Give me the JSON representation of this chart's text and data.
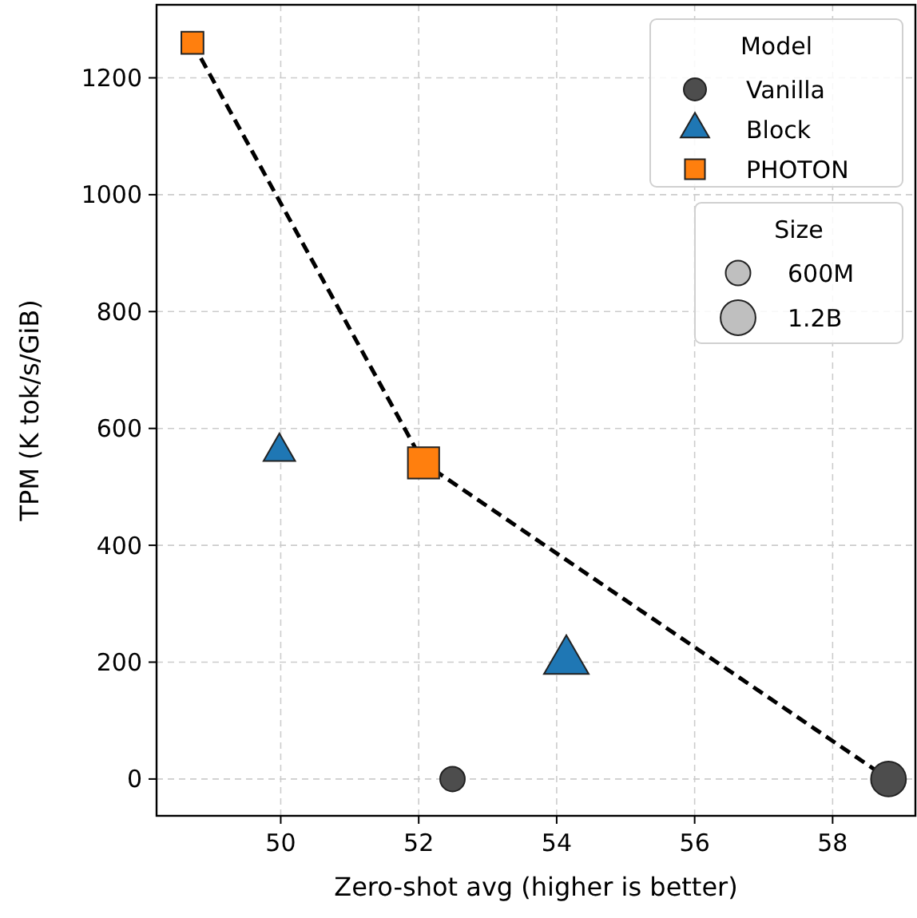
{
  "chart_data": {
    "type": "bubble",
    "xlabel": "Zero-shot avg (higher is better)",
    "ylabel": "TPM (K tok/s/GiB)",
    "xlim": [
      48.2,
      59.2
    ],
    "xticks": [
      50,
      52,
      54,
      56,
      58
    ],
    "ylim": [
      -63,
      1325
    ],
    "yticks": [
      0,
      200,
      400,
      600,
      800,
      1000,
      1200
    ],
    "grid": true,
    "legend": "top right",
    "legend_title": "Model",
    "size_legend": [
      {
        "value": 0.6,
        "label": "600M"
      },
      {
        "value": 1.2,
        "label": "1.2B"
      }
    ],
    "annotations": [
      "Size"
    ],
    "series": [
      {
        "type": "line",
        "color": "#000000",
        "line_style": "dashed",
        "marker": "none",
        "x": [
          48.72,
          52.07,
          58.81
        ],
        "values": [
          1260,
          541,
          0
        ]
      },
      {
        "name": "Vanilla",
        "color": "#4d4d4d",
        "marker": "circle",
        "x": [
          52.49,
          58.81
        ],
        "values": [
          0,
          0
        ],
        "sizes": [
          0.6,
          1.2
        ]
      },
      {
        "name": "Block",
        "color": "#1f77b4",
        "marker": "triangle",
        "x": [
          49.98,
          54.14
        ],
        "values": [
          560,
          202
        ],
        "sizes": [
          0.6,
          1.2
        ]
      },
      {
        "name": "PHOTON",
        "color": "#ff7f0e",
        "marker": "square",
        "x": [
          48.72,
          52.07
        ],
        "values": [
          1260,
          541
        ],
        "sizes": [
          0.6,
          1.2
        ]
      }
    ]
  }
}
